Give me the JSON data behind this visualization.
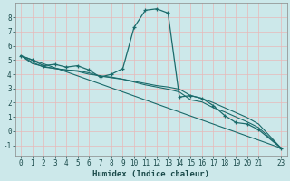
{
  "xlabel": "Humidex (Indice chaleur)",
  "bg_color": "#cce8ea",
  "grid_color": "#b0d8da",
  "line_color": "#1a6b6b",
  "xlim": [
    -0.5,
    23.5
  ],
  "ylim": [
    -1.7,
    9.0
  ],
  "xticks": [
    0,
    1,
    2,
    3,
    4,
    5,
    6,
    7,
    8,
    9,
    10,
    11,
    12,
    13,
    14,
    15,
    16,
    17,
    18,
    19,
    20,
    21,
    23
  ],
  "yticks": [
    -1,
    0,
    1,
    2,
    3,
    4,
    5,
    6,
    7,
    8
  ],
  "curves": [
    {
      "x": [
        0,
        1,
        2,
        3,
        4,
        5,
        6,
        7,
        8,
        9,
        10,
        11,
        12,
        13,
        14,
        15,
        16,
        17,
        18,
        19,
        20,
        21,
        23
      ],
      "y": [
        5.3,
        5.0,
        4.6,
        4.7,
        4.5,
        4.6,
        4.3,
        3.8,
        4.0,
        4.4,
        7.3,
        8.5,
        8.6,
        8.3,
        2.4,
        2.5,
        2.3,
        1.8,
        1.1,
        0.6,
        0.5,
        0.1,
        -1.2
      ],
      "marker": true
    },
    {
      "x": [
        0,
        1,
        2,
        3,
        4,
        5,
        6,
        7,
        8,
        9,
        10,
        11,
        12,
        13,
        14,
        15,
        16,
        17,
        18,
        19,
        20,
        21,
        23
      ],
      "y": [
        5.3,
        4.85,
        4.5,
        4.4,
        4.3,
        4.25,
        4.1,
        3.85,
        3.8,
        3.65,
        3.5,
        3.35,
        3.2,
        3.1,
        2.95,
        2.5,
        2.3,
        2.0,
        1.65,
        1.3,
        0.95,
        0.5,
        -1.2
      ],
      "marker": false
    },
    {
      "x": [
        0,
        1,
        2,
        3,
        4,
        5,
        6,
        7,
        8,
        9,
        10,
        11,
        12,
        13,
        14,
        15,
        16,
        17,
        18,
        19,
        20,
        21,
        23
      ],
      "y": [
        5.3,
        4.75,
        4.55,
        4.4,
        4.3,
        4.2,
        4.0,
        3.9,
        3.75,
        3.65,
        3.45,
        3.25,
        3.1,
        2.95,
        2.75,
        2.2,
        2.05,
        1.65,
        1.35,
        1.0,
        0.65,
        0.25,
        -1.2
      ],
      "marker": false
    },
    {
      "x": [
        0,
        23
      ],
      "y": [
        5.3,
        -1.2
      ],
      "marker": false
    }
  ]
}
